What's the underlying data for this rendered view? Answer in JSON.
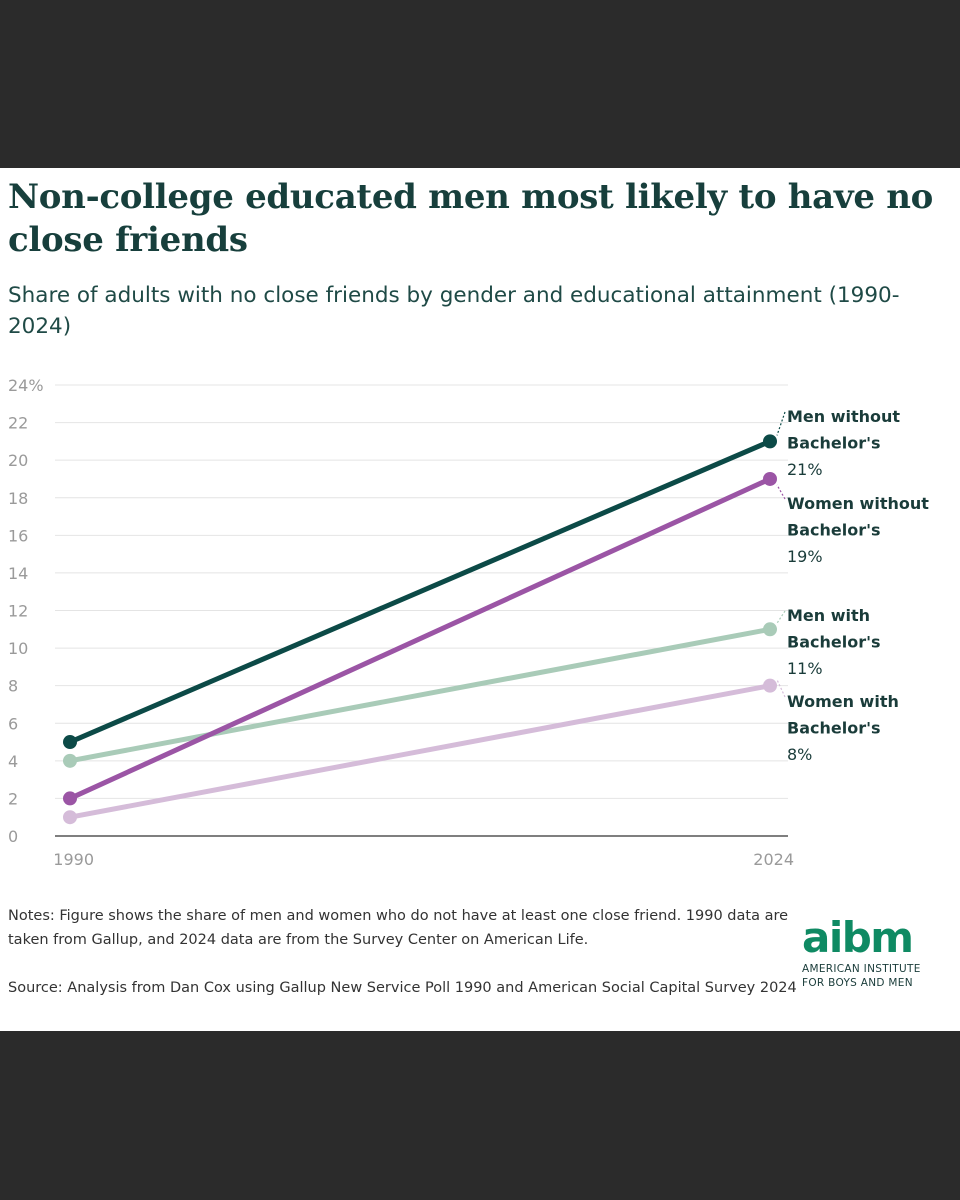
{
  "brand": {
    "logo_mark": "aibm",
    "logo_line1": "AMERICAN INSTITUTE",
    "logo_line2": "FOR BOYS AND MEN",
    "color": "#0f8a63"
  },
  "notes": "Notes: Figure shows the share of men and women who do not have at least one close friend. 1990 data are taken from Gallup, and 2024 data are from the Survey Center on American Life.",
  "source": "Source: Analysis from Dan Cox using Gallup New Service Poll 1990 and American Social Capital Survey 2024",
  "chart_data": {
    "type": "line",
    "title": "Non-college educated men most likely to have no close friends",
    "subtitle": "Share of adults with no close friends by gender and educational attainment (1990-2024)",
    "x": [
      "1990",
      "2024"
    ],
    "ylim": [
      0,
      24
    ],
    "yticks": [
      0,
      2,
      4,
      6,
      8,
      10,
      12,
      14,
      16,
      18,
      20,
      22,
      24
    ],
    "ytick_labels": [
      "0",
      "2",
      "4",
      "6",
      "8",
      "10",
      "12",
      "14",
      "16",
      "18",
      "20",
      "22",
      "24%"
    ],
    "grid": true,
    "series": [
      {
        "name": "Women with Bachelor's",
        "label_line1": "Women with",
        "label_line2": "Bachelor's",
        "end_label": "8%",
        "values": [
          1,
          8
        ],
        "color": "#d5bcd9"
      },
      {
        "name": "Men with Bachelor's",
        "label_line1": "Men with",
        "label_line2": "Bachelor's",
        "end_label": "11%",
        "values": [
          4,
          11
        ],
        "color": "#a9cbb8"
      },
      {
        "name": "Women without Bachelor's",
        "label_line1": "Women without",
        "label_line2": "Bachelor's",
        "end_label": "19%",
        "values": [
          2,
          19
        ],
        "color": "#9b55a5"
      },
      {
        "name": "Men without Bachelor's",
        "label_line1": "Men without",
        "label_line2": "Bachelor's",
        "end_label": "21%",
        "values": [
          5,
          21
        ],
        "color": "#0c4a47"
      }
    ]
  }
}
